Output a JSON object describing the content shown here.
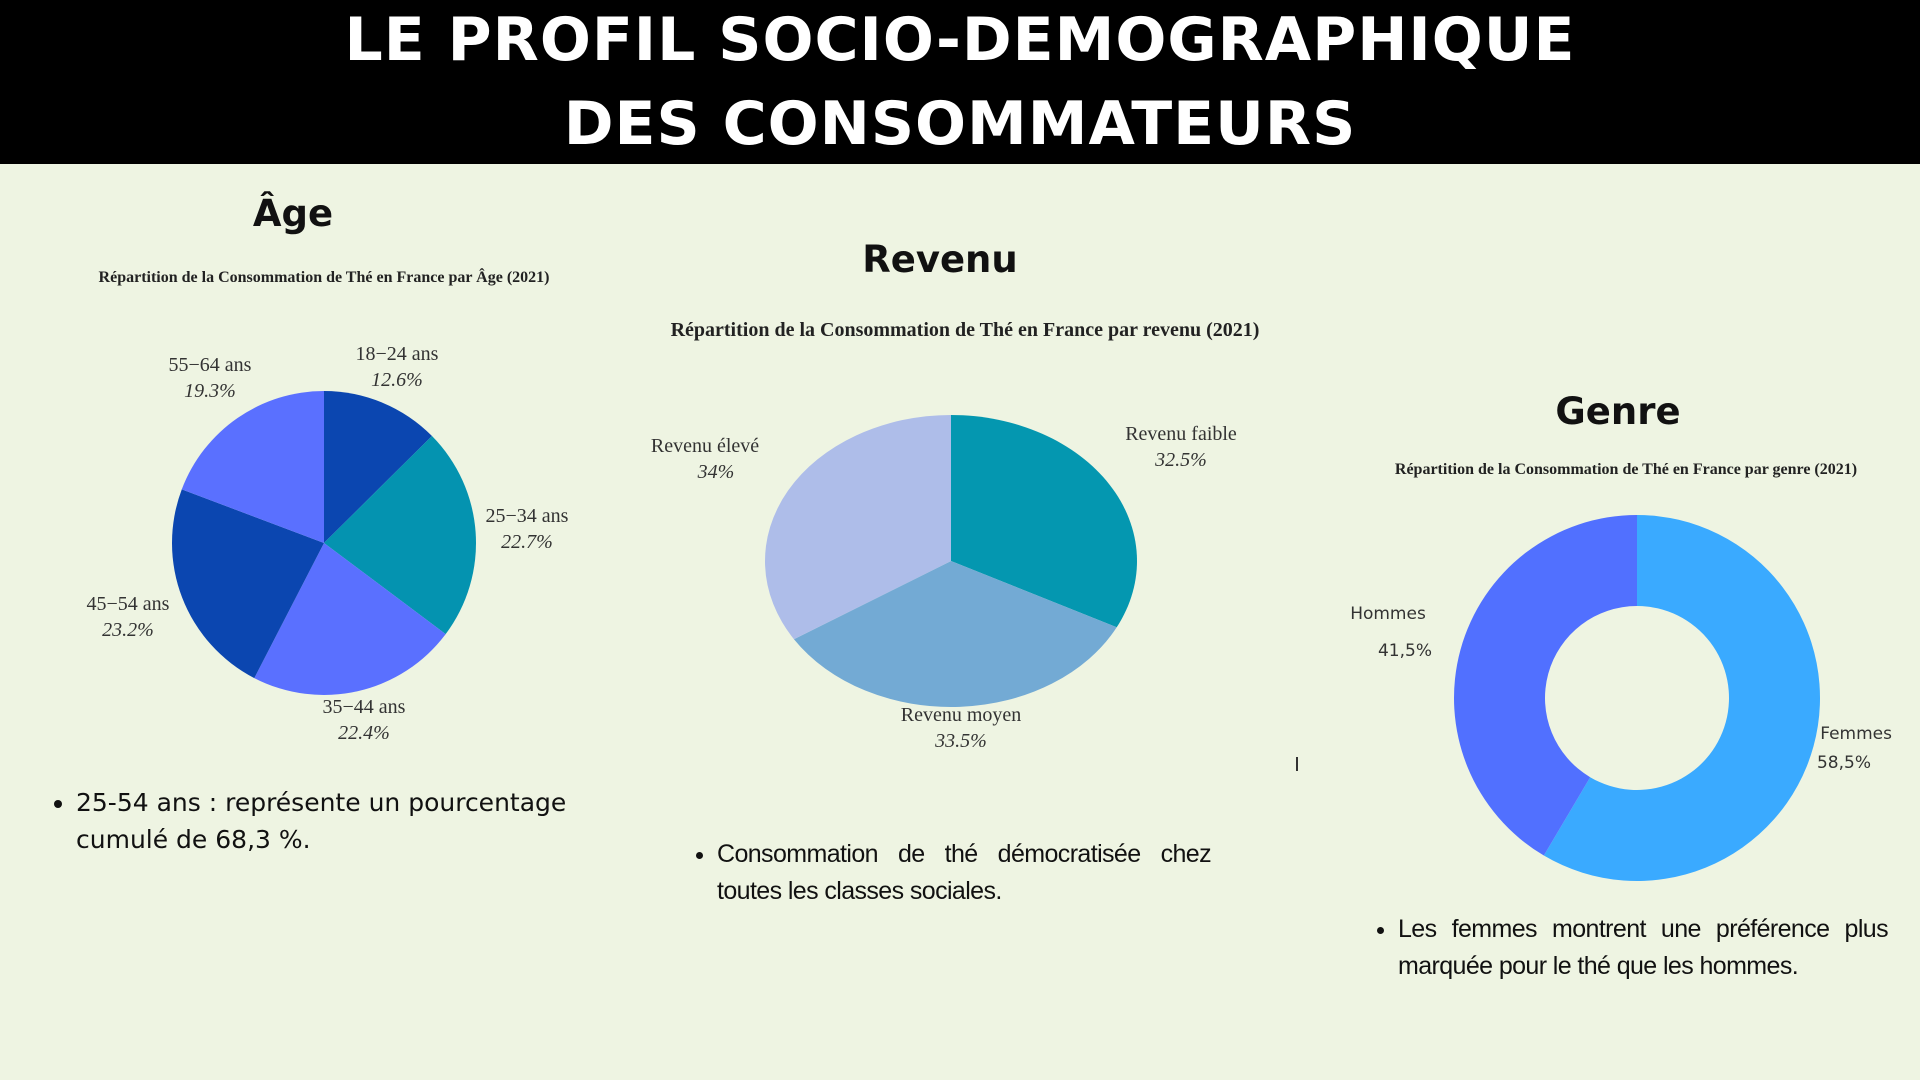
{
  "header": {
    "line1": "LE PROFIL SOCIO-DEMOGRAPHIQUE",
    "line2": "DES CONSOMMATEURS"
  },
  "sections": {
    "age": "Âge",
    "revenu": "Revenu",
    "genre": "Genre"
  },
  "chart_data": [
    {
      "type": "pie",
      "title": "Répartition de la Consommation de Thé en France par Âge (2021)",
      "categories": [
        "18−24 ans",
        "25−34 ans",
        "35−44 ans",
        "45−54 ans",
        "55−64 ans"
      ],
      "values": [
        12.6,
        22.7,
        22.4,
        23.2,
        19.3
      ],
      "labels": [
        "12.6%",
        "22.7%",
        "22.4%",
        "23.2%",
        "19.3%"
      ],
      "colors": [
        "#0b46b0",
        "#0493b0",
        "#5a70ff",
        "#0b46b0",
        "#5a70ff"
      ]
    },
    {
      "type": "pie",
      "title": "Répartition de la Consommation de Thé en France par revenu (2021)",
      "categories": [
        "Revenu faible",
        "Revenu moyen",
        "Revenu élevé"
      ],
      "values": [
        32.5,
        33.5,
        34
      ],
      "labels": [
        "32.5%",
        "33.5%",
        "34%"
      ],
      "colors": [
        "#0497b0",
        "#73aad4",
        "#aebde9"
      ]
    },
    {
      "type": "pie",
      "title": "Répartition de la Consommation de Thé en France par genre (2021)",
      "categories": [
        "Femmes",
        "Hommes"
      ],
      "values": [
        58.5,
        41.5
      ],
      "labels": [
        "58,5%",
        "41,5%"
      ],
      "colors": [
        "#3aaaff",
        "#5170ff"
      ]
    }
  ],
  "bullets": {
    "age": "25-54 ans : représente un pourcentage cumulé de 68,3 %.",
    "revenu": "Consommation de thé démocratisée chez toutes les classes sociales.",
    "genre": "Les femmes montrent une préférence plus marquée pour le thé que les hommes."
  }
}
